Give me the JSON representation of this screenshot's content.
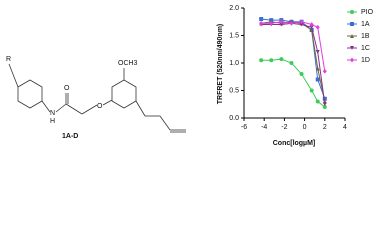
{
  "structure": {
    "labels": {
      "r": "R",
      "n": "N",
      "h": "H",
      "o1": "O",
      "o2": "O",
      "och3": "OCH3",
      "name": "1A-D"
    }
  },
  "chart_data": {
    "type": "scatter",
    "ylabel": "TRFRET (520nm/490nm)",
    "xlabel": "Conc[logµM]",
    "xlim": [
      -6,
      4
    ],
    "xticks": [
      -6,
      -4,
      -2,
      0,
      2,
      4
    ],
    "ylim": [
      0,
      2.0
    ],
    "yticks": [
      {
        "value": 0,
        "label": "0.0"
      },
      {
        "value": 0.5,
        "label": "0.5"
      },
      {
        "value": 1,
        "label": "1.0"
      },
      {
        "value": 1.5,
        "label": "1.5"
      },
      {
        "value": 2,
        "label": "2.0"
      }
    ],
    "x": [
      -4.3,
      -3.3,
      -2.3,
      -1.3,
      -0.3,
      0.7,
      1.3,
      2
    ],
    "series": [
      {
        "name": "PIO",
        "color": "#3dcc5a",
        "marker": "circle",
        "values": [
          1.05,
          1.05,
          1.07,
          1.0,
          0.8,
          0.5,
          0.3,
          0.2
        ]
      },
      {
        "name": "1A",
        "color": "#3b6fd6",
        "marker": "square",
        "values": [
          1.8,
          1.78,
          1.78,
          1.75,
          1.75,
          1.6,
          0.7,
          0.35
        ]
      },
      {
        "name": "1B",
        "color": "#6b6b3a",
        "marker": "triangle",
        "values": [
          1.72,
          1.75,
          1.72,
          1.75,
          1.72,
          1.6,
          0.9,
          0.3
        ]
      },
      {
        "name": "1C",
        "color": "#8a2f8f",
        "marker": "triangle-down",
        "values": [
          1.7,
          1.7,
          1.7,
          1.72,
          1.7,
          1.65,
          1.2,
          0.25
        ]
      },
      {
        "name": "1D",
        "color": "#e040e0",
        "marker": "diamond",
        "values": [
          1.72,
          1.72,
          1.75,
          1.72,
          1.75,
          1.7,
          1.65,
          0.85
        ]
      }
    ]
  }
}
